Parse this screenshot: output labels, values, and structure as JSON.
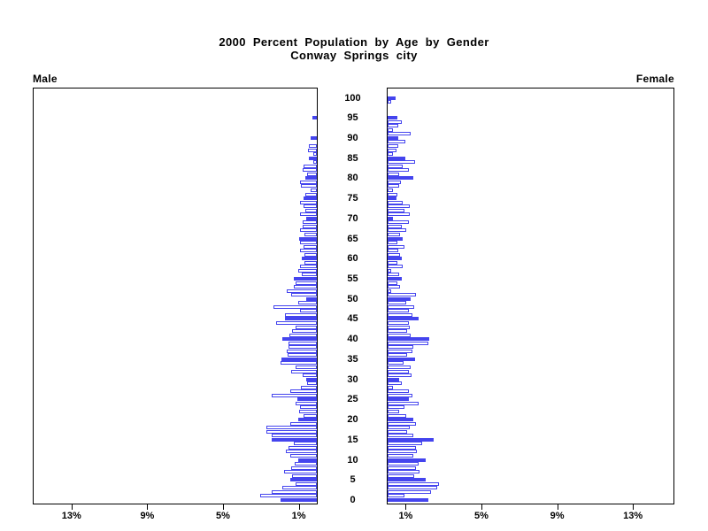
{
  "title": {
    "line1": "2000 Percent Population by Age by Gender",
    "line2": "Conway Springs city"
  },
  "panels": {
    "left_label": "Male",
    "right_label": "Female"
  },
  "colors": {
    "bar_fill_highlight": "#4444EE",
    "bar_outline": "#4444EE",
    "bar_fill_regular": "#FFFFFF",
    "frame": "#000000",
    "text": "#000000",
    "background": "#FFFFFF"
  },
  "chart_data": {
    "type": "bar",
    "subtype": "population-pyramid",
    "orientation": "horizontal",
    "title": "2000 Percent Population by Age by Gender",
    "subtitle": "Conway Springs city",
    "age_axis": {
      "min": 0,
      "max": 100,
      "tick_interval": 5,
      "tick_labels": [
        "100",
        "95",
        "90",
        "85",
        "80",
        "75",
        "70",
        "65",
        "60",
        "55",
        "50",
        "45",
        "40",
        "35",
        "30",
        "25",
        "20",
        "15",
        "10",
        "5",
        "0"
      ]
    },
    "percent_axis": {
      "limit_percent": 15,
      "male_tick_labels": [
        "13%",
        "9%",
        "5%",
        "1%"
      ],
      "male_tick_percents": [
        13,
        9,
        5,
        1
      ],
      "female_tick_labels": [
        "1%",
        "5%",
        "9%",
        "13%"
      ],
      "female_tick_percents": [
        1,
        5,
        9,
        13
      ]
    },
    "highlight_rule": "ages divisible by 5 drawn as solid filled bars; other ages white with outline",
    "series": [
      {
        "name": "Male",
        "values_percent_by_age": [
          1.9,
          3.0,
          2.4,
          1.8,
          1.1,
          1.4,
          1.3,
          1.75,
          1.35,
          1.15,
          1.0,
          1.4,
          1.65,
          1.5,
          1.2,
          2.4,
          2.4,
          2.65,
          2.65,
          1.4,
          1.0,
          0.7,
          0.95,
          0.9,
          1.1,
          1.05,
          2.4,
          1.4,
          0.85,
          0.5,
          0.55,
          0.75,
          1.35,
          1.1,
          1.9,
          1.85,
          1.55,
          1.6,
          1.5,
          1.5,
          1.8,
          1.45,
          1.3,
          1.1,
          2.15,
          1.7,
          1.7,
          0.9,
          2.3,
          1.0,
          0.55,
          1.35,
          1.6,
          1.2,
          1.1,
          1.2,
          0.8,
          1.0,
          0.9,
          0.65,
          0.8,
          0.65,
          0.9,
          0.7,
          0.9,
          0.95,
          0.65,
          0.9,
          0.75,
          0.75,
          0.55,
          0.9,
          0.6,
          0.7,
          0.9,
          0.7,
          0.6,
          0.35,
          0.85,
          0.9,
          0.6,
          0.5,
          0.75,
          0.7,
          0.2,
          0.4,
          0.2,
          0.45,
          0.4,
          0.0,
          0.35,
          0.0,
          0.0,
          0.0,
          0.0,
          0.25,
          0.0,
          0.0,
          0.0,
          0.0,
          0.0
        ]
      },
      {
        "name": "Female",
        "values_percent_by_age": [
          2.15,
          0.9,
          2.3,
          2.6,
          2.7,
          2.0,
          1.4,
          1.7,
          1.5,
          1.65,
          2.0,
          1.35,
          1.55,
          1.5,
          1.8,
          2.45,
          1.35,
          1.05,
          1.15,
          1.5,
          1.35,
          1.0,
          0.6,
          0.9,
          1.65,
          1.1,
          1.3,
          1.1,
          0.3,
          0.75,
          0.6,
          1.25,
          1.1,
          1.2,
          0.85,
          1.45,
          1.05,
          1.3,
          1.35,
          2.15,
          2.2,
          1.2,
          1.05,
          1.15,
          1.1,
          1.65,
          1.3,
          1.1,
          1.4,
          1.0,
          1.2,
          1.5,
          0.2,
          0.65,
          0.5,
          0.75,
          0.6,
          0.2,
          0.8,
          0.5,
          0.75,
          0.65,
          0.55,
          0.9,
          0.5,
          0.8,
          0.65,
          1.0,
          0.75,
          1.1,
          0.3,
          1.15,
          0.9,
          1.15,
          0.8,
          0.45,
          0.5,
          0.3,
          0.6,
          0.7,
          1.35,
          0.6,
          1.1,
          0.8,
          1.45,
          0.95,
          0.3,
          0.45,
          0.55,
          0.95,
          0.55,
          1.2,
          0.3,
          0.55,
          0.75,
          0.5,
          0.0,
          0.0,
          0.0,
          0.2,
          0.4
        ]
      }
    ]
  }
}
